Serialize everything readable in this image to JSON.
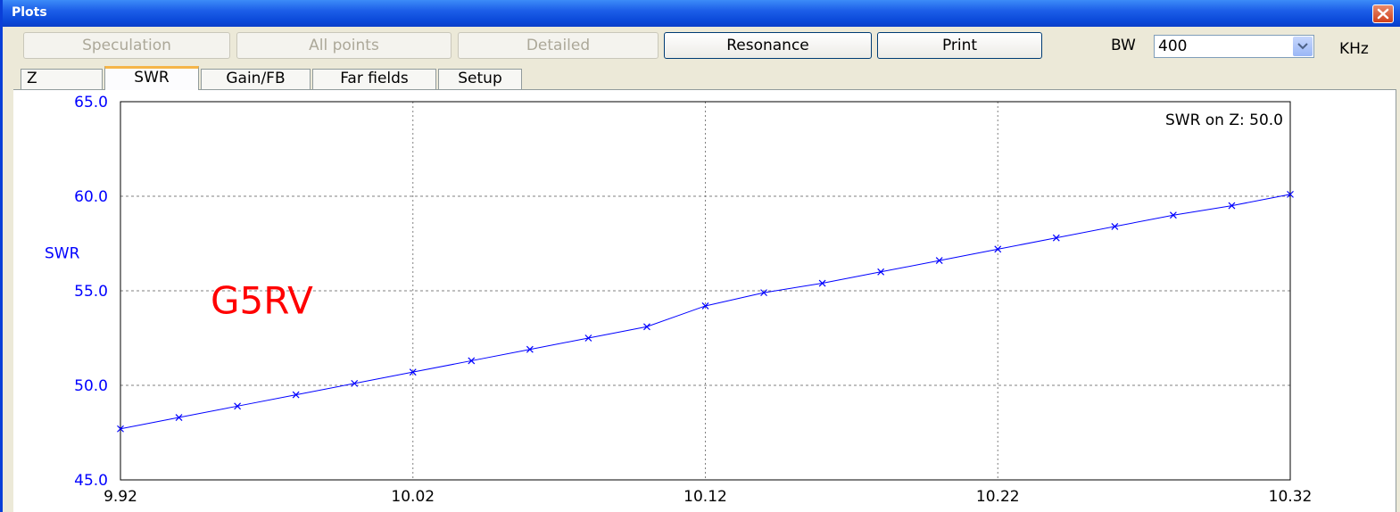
{
  "window": {
    "title": "Plots"
  },
  "toolbar": {
    "buttons": [
      {
        "label": "Speculation",
        "enabled": false
      },
      {
        "label": "All points",
        "enabled": false
      },
      {
        "label": "Detailed",
        "enabled": false
      },
      {
        "label": "Resonance",
        "enabled": true
      },
      {
        "label": "Print",
        "enabled": true
      }
    ],
    "bw_label": "BW",
    "bw_value": "400",
    "bw_unit": "KHz"
  },
  "tabs": [
    {
      "label": "Z",
      "selected": false
    },
    {
      "label": "SWR",
      "selected": true
    },
    {
      "label": "Gain/FB",
      "selected": false
    },
    {
      "label": "Far fields",
      "selected": false
    },
    {
      "label": "Setup",
      "selected": false
    }
  ],
  "overlay_label": "G5RV",
  "colors": {
    "axis_text": "#0000ff",
    "series": "#0000ff",
    "overlay": "#ff0000"
  },
  "chart_data": {
    "type": "line",
    "title": "",
    "annotation": "SWR on Z: 50.0",
    "xlabel": "",
    "ylabel": "SWR",
    "xlim": [
      9.92,
      10.32
    ],
    "ylim": [
      45.0,
      65.0
    ],
    "x_ticks": [
      "9.92",
      "10.02",
      "10.12",
      "10.22",
      "10.32"
    ],
    "y_ticks": [
      "45.0",
      "50.0",
      "55.0",
      "60.0",
      "65.0"
    ],
    "grid": true,
    "series": [
      {
        "marker": "x",
        "x": [
          9.92,
          9.94,
          9.96,
          9.98,
          10.0,
          10.02,
          10.04,
          10.06,
          10.08,
          10.1,
          10.12,
          10.14,
          10.16,
          10.18,
          10.2,
          10.22,
          10.24,
          10.26,
          10.28,
          10.3,
          10.32
        ],
        "y": [
          47.7,
          48.3,
          48.9,
          49.5,
          50.1,
          50.7,
          51.3,
          51.9,
          52.5,
          53.1,
          54.2,
          54.9,
          55.4,
          56.0,
          56.6,
          57.2,
          57.8,
          58.4,
          59.0,
          59.5,
          60.1
        ]
      }
    ]
  }
}
